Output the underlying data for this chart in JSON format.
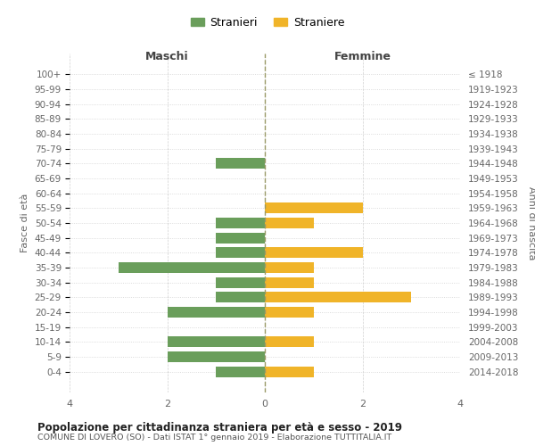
{
  "age_groups": [
    "100+",
    "95-99",
    "90-94",
    "85-89",
    "80-84",
    "75-79",
    "70-74",
    "65-69",
    "60-64",
    "55-59",
    "50-54",
    "45-49",
    "40-44",
    "35-39",
    "30-34",
    "25-29",
    "20-24",
    "15-19",
    "10-14",
    "5-9",
    "0-4"
  ],
  "birth_years": [
    "≤ 1918",
    "1919-1923",
    "1924-1928",
    "1929-1933",
    "1934-1938",
    "1939-1943",
    "1944-1948",
    "1949-1953",
    "1954-1958",
    "1959-1963",
    "1964-1968",
    "1969-1973",
    "1974-1978",
    "1979-1983",
    "1984-1988",
    "1989-1993",
    "1994-1998",
    "1999-2003",
    "2004-2008",
    "2009-2013",
    "2014-2018"
  ],
  "maschi": [
    0,
    0,
    0,
    0,
    0,
    0,
    1,
    0,
    0,
    0,
    1,
    1,
    1,
    3,
    1,
    1,
    2,
    0,
    2,
    2,
    1
  ],
  "femmine": [
    0,
    0,
    0,
    0,
    0,
    0,
    0,
    0,
    0,
    2,
    1,
    0,
    2,
    1,
    1,
    3,
    1,
    0,
    1,
    0,
    1
  ],
  "maschi_color": "#6a9e5b",
  "femmine_color": "#f0b429",
  "title_main": "Popolazione per cittadinanza straniera per età e sesso - 2019",
  "title_sub": "COMUNE DI LOVERO (SO) - Dati ISTAT 1° gennaio 2019 - Elaborazione TUTTITALIA.IT",
  "xlabel_left": "Maschi",
  "xlabel_right": "Femmine",
  "ylabel_left": "Fasce di età",
  "ylabel_right": "Anni di nascita",
  "legend_stranieri": "Stranieri",
  "legend_straniere": "Straniere",
  "xlim": 4,
  "background_color": "#ffffff",
  "grid_color": "#cccccc"
}
